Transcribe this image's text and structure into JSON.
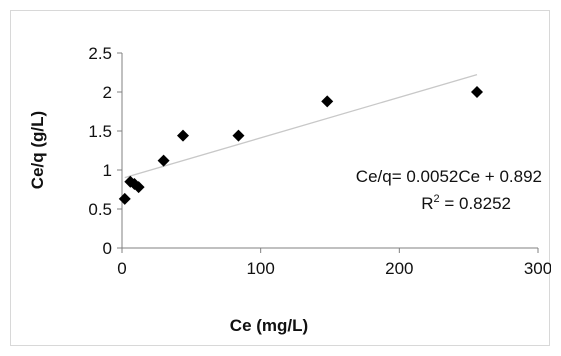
{
  "chart_data": {
    "type": "scatter",
    "xlabel": "Ce (mg/L)",
    "ylabel": "Ce/q (g/L)",
    "xlim": [
      0,
      300
    ],
    "ylim": [
      0,
      2.5
    ],
    "x_ticks": [
      "0",
      "100",
      "200",
      "300"
    ],
    "y_ticks": [
      "0",
      "0.5",
      "1",
      "1.5",
      "2",
      "2.5"
    ],
    "x_tick_values": [
      0,
      100,
      200,
      300
    ],
    "y_tick_values": [
      0,
      0.5,
      1,
      1.5,
      2,
      2.5
    ],
    "grid": false,
    "marker": "diamond",
    "marker_color": "#000000",
    "trendline_color": "#c8c8c8",
    "points": [
      {
        "x": 2,
        "y": 0.63
      },
      {
        "x": 6,
        "y": 0.85
      },
      {
        "x": 9,
        "y": 0.82
      },
      {
        "x": 12,
        "y": 0.78
      },
      {
        "x": 30,
        "y": 1.12
      },
      {
        "x": 44,
        "y": 1.44
      },
      {
        "x": 84,
        "y": 1.44
      },
      {
        "x": 148,
        "y": 1.88
      },
      {
        "x": 256,
        "y": 2.0
      }
    ],
    "trendline": {
      "slope": 0.0052,
      "intercept": 0.892,
      "x_range": [
        2,
        256
      ]
    },
    "equation_label": "Ce/q= 0.0052Ce + 0.892",
    "r2_label_prefix": "R",
    "r2_label_sup": "2",
    "r2_label_value": " = 0.8252"
  }
}
